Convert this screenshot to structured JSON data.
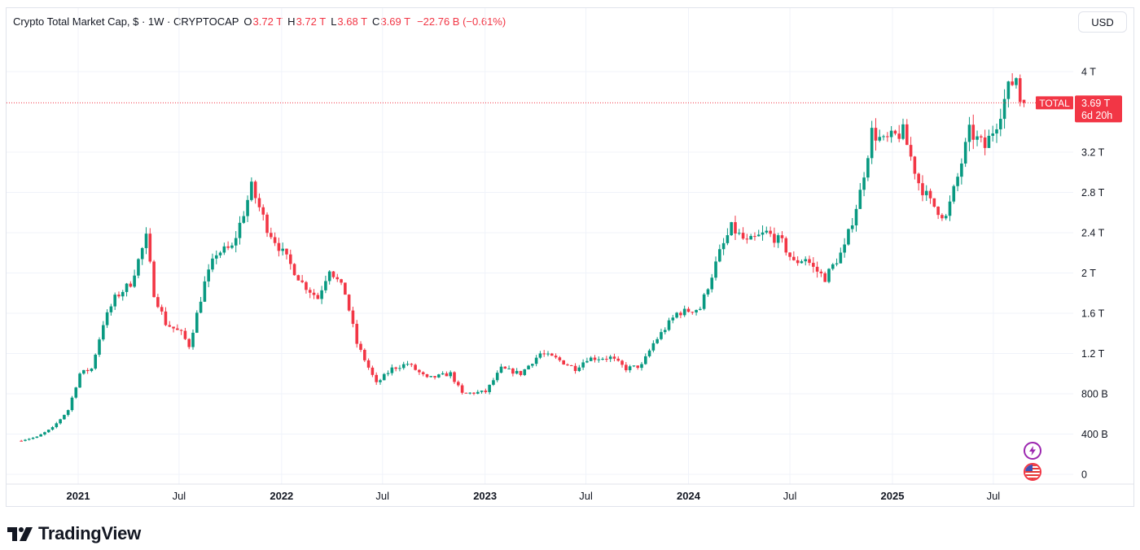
{
  "header": {
    "title": "Crypto Total Market Cap, $ · 1W · CRYPTOCAP",
    "open_label": "O",
    "open": "3.72 T",
    "high_label": "H",
    "high": "3.72 T",
    "low_label": "L",
    "low": "3.68 T",
    "close_label": "C",
    "close": "3.69 T",
    "change": "−22.76 B (−0.61%)"
  },
  "currency_button": "USD",
  "price_tag": {
    "symbol": "TOTAL",
    "value": "3.69 T",
    "countdown": "6d 20h"
  },
  "brand": {
    "name": "TradingView"
  },
  "colors": {
    "up": "#089981",
    "down": "#f23645",
    "grid": "#f0f3fa",
    "axis_text": "#131722"
  },
  "icons": {
    "event_1": "lightning-icon",
    "event_2": "us-flag-icon"
  },
  "chart_data": {
    "type": "candlestick",
    "interval": "1W",
    "y_unit": "USD",
    "y_ticks": [
      {
        "value": 0,
        "label": "0"
      },
      {
        "value": 400,
        "label": "400 B"
      },
      {
        "value": 800,
        "label": "800 B"
      },
      {
        "value": 1200,
        "label": "1.2 T"
      },
      {
        "value": 1600,
        "label": "1.6 T"
      },
      {
        "value": 2000,
        "label": "2 T"
      },
      {
        "value": 2400,
        "label": "2.4 T"
      },
      {
        "value": 2800,
        "label": "2.8 T"
      },
      {
        "value": 3200,
        "label": "3.2 T"
      },
      {
        "value": 4000,
        "label": "4 T"
      }
    ],
    "x_ticks": [
      {
        "date": "2021-01-01",
        "label": "2021",
        "bold": true
      },
      {
        "date": "2021-07-01",
        "label": "Jul",
        "bold": false
      },
      {
        "date": "2022-01-01",
        "label": "2022",
        "bold": true
      },
      {
        "date": "2022-07-01",
        "label": "Jul",
        "bold": false
      },
      {
        "date": "2023-01-01",
        "label": "2023",
        "bold": true
      },
      {
        "date": "2023-07-01",
        "label": "Jul",
        "bold": false
      },
      {
        "date": "2024-01-01",
        "label": "2024",
        "bold": true
      },
      {
        "date": "2024-07-01",
        "label": "Jul",
        "bold": false
      },
      {
        "date": "2025-01-01",
        "label": "2025",
        "bold": true
      },
      {
        "date": "2025-07-01",
        "label": "Jul",
        "bold": false
      }
    ],
    "last_close": 3690,
    "series_name": "TOTAL",
    "candle_anchors": [
      [
        "2020-09-21",
        340
      ],
      [
        "2020-10-19",
        370
      ],
      [
        "2020-11-16",
        460
      ],
      [
        "2020-12-14",
        640
      ],
      [
        "2021-01-04",
        1000
      ],
      [
        "2021-01-25",
        1050
      ],
      [
        "2021-02-15",
        1500
      ],
      [
        "2021-03-08",
        1750
      ],
      [
        "2021-04-05",
        1900
      ],
      [
        "2021-05-03",
        2350
      ],
      [
        "2021-05-17",
        1800
      ],
      [
        "2021-06-07",
        1500
      ],
      [
        "2021-07-05",
        1400
      ],
      [
        "2021-07-19",
        1280
      ],
      [
        "2021-08-16",
        1900
      ],
      [
        "2021-09-06",
        2200
      ],
      [
        "2021-10-04",
        2250
      ],
      [
        "2021-10-25",
        2600
      ],
      [
        "2021-11-08",
        2850
      ],
      [
        "2021-12-06",
        2450
      ],
      [
        "2022-01-03",
        2200
      ],
      [
        "2022-02-07",
        1900
      ],
      [
        "2022-03-07",
        1750
      ],
      [
        "2022-03-28",
        2050
      ],
      [
        "2022-04-25",
        1800
      ],
      [
        "2022-05-16",
        1300
      ],
      [
        "2022-06-20",
        900
      ],
      [
        "2022-07-18",
        1050
      ],
      [
        "2022-08-15",
        1100
      ],
      [
        "2022-09-19",
        950
      ],
      [
        "2022-10-31",
        1000
      ],
      [
        "2022-11-21",
        800
      ],
      [
        "2023-01-02",
        820
      ],
      [
        "2023-01-30",
        1050
      ],
      [
        "2023-03-06",
        1000
      ],
      [
        "2023-04-10",
        1200
      ],
      [
        "2023-05-08",
        1150
      ],
      [
        "2023-06-12",
        1050
      ],
      [
        "2023-07-03",
        1150
      ],
      [
        "2023-08-14",
        1160
      ],
      [
        "2023-09-11",
        1050
      ],
      [
        "2023-10-09",
        1080
      ],
      [
        "2023-10-30",
        1300
      ],
      [
        "2023-12-11",
        1600
      ],
      [
        "2024-01-22",
        1650
      ],
      [
        "2024-02-26",
        2200
      ],
      [
        "2024-03-18",
        2450
      ],
      [
        "2024-04-15",
        2300
      ],
      [
        "2024-05-20",
        2400
      ],
      [
        "2024-06-17",
        2300
      ],
      [
        "2024-07-08",
        2100
      ],
      [
        "2024-07-29",
        2150
      ],
      [
        "2024-08-12",
        2050
      ],
      [
        "2024-09-02",
        1950
      ],
      [
        "2024-10-07",
        2250
      ],
      [
        "2024-11-04",
        2800
      ],
      [
        "2024-11-25",
        3400
      ],
      [
        "2024-12-16",
        3300
      ],
      [
        "2025-01-20",
        3400
      ],
      [
        "2025-02-17",
        2900
      ],
      [
        "2025-03-10",
        2700
      ],
      [
        "2025-04-07",
        2550
      ],
      [
        "2025-04-28",
        2950
      ],
      [
        "2025-05-19",
        3400
      ],
      [
        "2025-06-16",
        3250
      ],
      [
        "2025-07-07",
        3500
      ],
      [
        "2025-07-28",
        3830
      ],
      [
        "2025-08-11",
        3950
      ],
      [
        "2025-08-18",
        3720
      ],
      [
        "2025-08-25",
        3690
      ]
    ]
  }
}
